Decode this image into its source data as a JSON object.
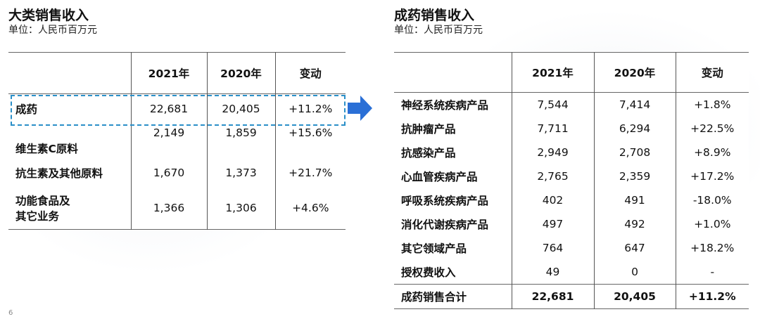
{
  "left": {
    "title": "大类销售收入",
    "unit": "单位：人民币百万元",
    "headers": [
      "",
      "2021年",
      "2020年",
      "变动"
    ],
    "rows": [
      {
        "label": "成药",
        "y2021": "22,681",
        "y2020": "20,405",
        "change": "+11.2%"
      },
      {
        "label": "维生素C原料",
        "y2021": "2,149",
        "y2020": "1,859",
        "change": "+15.6%"
      },
      {
        "label": "抗生素及其他原料",
        "y2021": "1,670",
        "y2020": "1,373",
        "change": "+21.7%"
      },
      {
        "label_line1": "功能食品及",
        "label_line2": "其它业务",
        "y2021": "1,366",
        "y2020": "1,306",
        "change": "+4.6%"
      }
    ]
  },
  "right": {
    "title": "成药销售收入",
    "unit": "单位：人民币百万元",
    "headers": [
      "",
      "2021年",
      "2020年",
      "变动"
    ],
    "rows": [
      {
        "label": "神经系统疾病产品",
        "y2021": "7,544",
        "y2020": "7,414",
        "change": "+1.8%"
      },
      {
        "label": "抗肿瘤产品",
        "y2021": "7,711",
        "y2020": "6,294",
        "change": "+22.5%"
      },
      {
        "label": "抗感染产品",
        "y2021": "2,949",
        "y2020": "2,708",
        "change": "+8.9%"
      },
      {
        "label": "心血管疾病产品",
        "y2021": "2,765",
        "y2020": "2,359",
        "change": "+17.2%"
      },
      {
        "label": "呼吸系统疾病产品",
        "y2021": "402",
        "y2020": "491",
        "change": "-18.0%"
      },
      {
        "label": "消化代谢疾病产品",
        "y2021": "497",
        "y2020": "492",
        "change": "+1.0%"
      },
      {
        "label": "其它领域产品",
        "y2021": "764",
        "y2020": "647",
        "change": "+18.2%"
      },
      {
        "label": "授权费收入",
        "y2021": "49",
        "y2020": "0",
        "change": "-"
      }
    ],
    "total": {
      "label": "成药销售合计",
      "y2021": "22,681",
      "y2020": "20,405",
      "change": "+11.2%"
    }
  },
  "page_number": "6",
  "colors": {
    "highlight": "#2a8fc8",
    "arrow": "#2a6fd6"
  },
  "icons": {
    "arrow": "arrow-right-icon"
  }
}
